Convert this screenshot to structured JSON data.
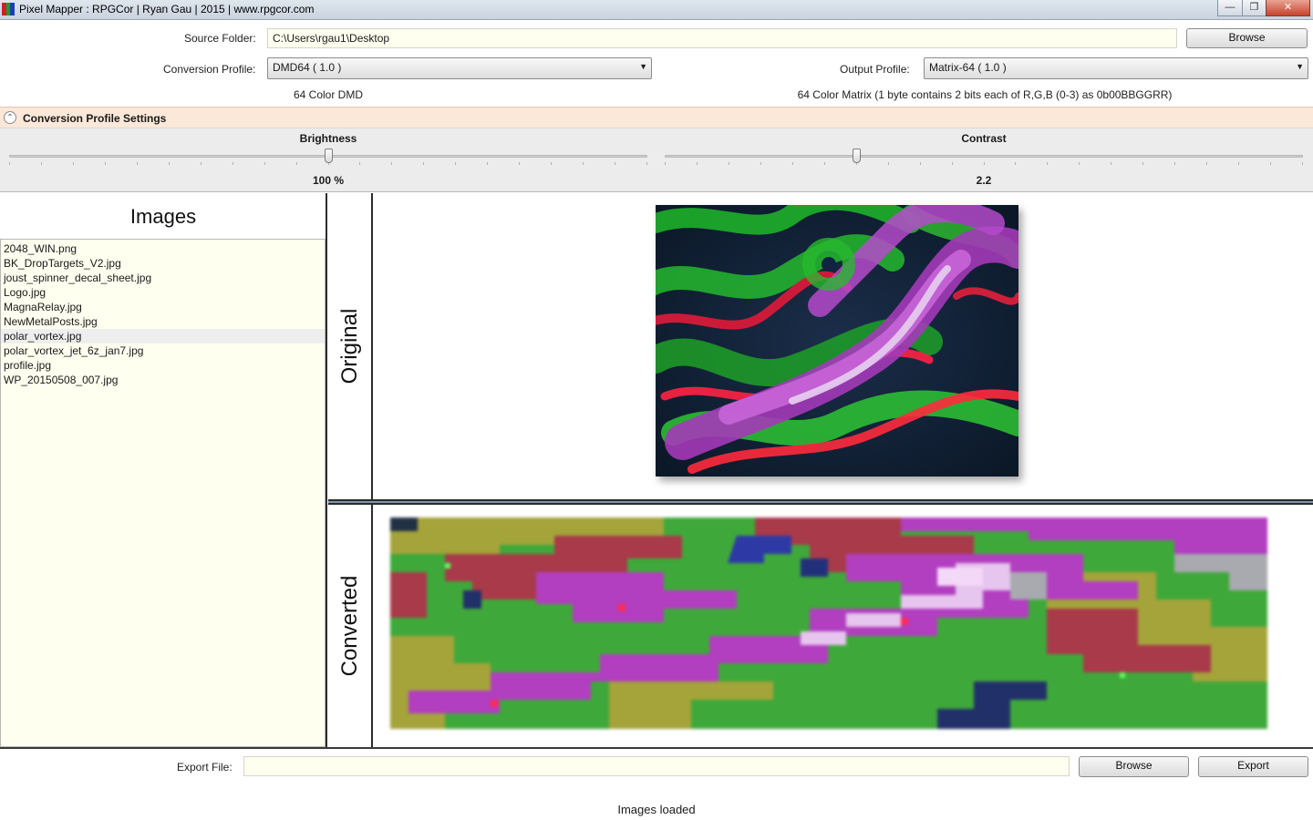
{
  "window": {
    "title": "Pixel Mapper : RPGCor | Ryan Gau | 2015 | www.rpgcor.com",
    "icon_colors": [
      "#d22020",
      "#1f9d2a",
      "#1e3fb0"
    ],
    "minimize_glyph": "—",
    "maximize_glyph": "❐",
    "close_glyph": "✕"
  },
  "source": {
    "label": "Source Folder:",
    "value": "C:\\Users\\rgau1\\Desktop",
    "browse_label": "Browse"
  },
  "conversion": {
    "label": "Conversion Profile:",
    "selected": "DMD64  ( 1.0 )",
    "description": "64 Color DMD"
  },
  "output": {
    "label": "Output Profile:",
    "selected": "Matrix-64  ( 1.0 )",
    "description": "64 Color Matrix (1 byte contains 2 bits each of R,G,B (0-3) as 0b00BBGGRR)"
  },
  "settings": {
    "title": "Conversion Profile Settings",
    "toggle_glyph": "⌃",
    "brightness": {
      "label": "Brightness",
      "value_text": "100 %",
      "fraction": 0.5
    },
    "contrast": {
      "label": "Contrast",
      "value_text": "2.2",
      "fraction": 0.3
    }
  },
  "images": {
    "title": "Images",
    "files": [
      "2048_WIN.png",
      "BK_DropTargets_V2.jpg",
      "joust_spinner_decal_sheet.jpg",
      "Logo.jpg",
      "MagnaRelay.jpg",
      "NewMetalPosts.jpg",
      "polar_vortex.jpg",
      "polar_vortex_jet_6z_jan7.jpg",
      "profile.jpg",
      "WP_20150508_007.jpg"
    ],
    "selected_index": 6
  },
  "preview": {
    "original_label": "Original",
    "converted_label": "Converted"
  },
  "export": {
    "label": "Export File:",
    "value": "",
    "browse_label": "Browse",
    "export_label": "Export"
  },
  "status": "Images loaded"
}
